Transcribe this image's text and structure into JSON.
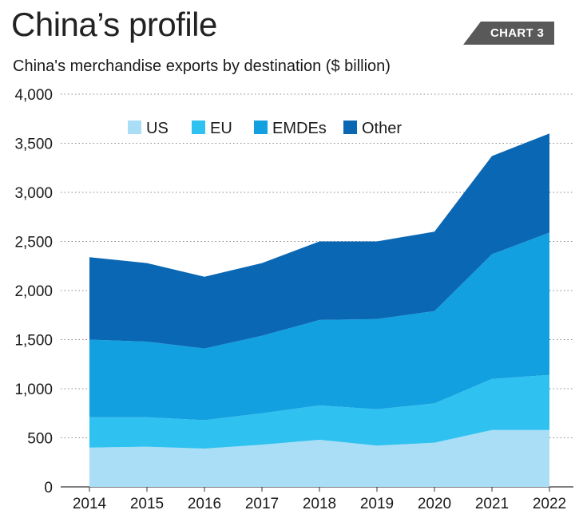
{
  "header": {
    "title": "China’s profile",
    "badge": "CHART 3"
  },
  "chart_data": {
    "type": "area",
    "stacked": true,
    "title": "China's merchandise exports by destination ($ billion)",
    "xlabel": "",
    "ylabel": "",
    "x": [
      "2014",
      "2015",
      "2016",
      "2017",
      "2018",
      "2019",
      "2020",
      "2021",
      "2022"
    ],
    "ylim": [
      0,
      4000
    ],
    "yticks": [
      "0",
      "500",
      "1,000",
      "1,500",
      "2,000",
      "2,500",
      "3,000",
      "3,500",
      "4,000"
    ],
    "ytick_values": [
      0,
      500,
      1000,
      1500,
      2000,
      2500,
      3000,
      3500,
      4000
    ],
    "grid": "horizontal dotted",
    "legend_position": "top-center",
    "series": [
      {
        "name": "US",
        "color": "#a9def6",
        "values": [
          400,
          410,
          390,
          430,
          480,
          420,
          450,
          580,
          580
        ]
      },
      {
        "name": "EU",
        "color": "#2fc1ef",
        "values": [
          310,
          300,
          290,
          320,
          350,
          370,
          400,
          520,
          560
        ]
      },
      {
        "name": "EMDEs",
        "color": "#12a0e0",
        "values": [
          790,
          770,
          730,
          790,
          870,
          920,
          940,
          1270,
          1450
        ]
      },
      {
        "name": "Other",
        "color": "#0a67b3",
        "values": [
          840,
          800,
          730,
          740,
          800,
          790,
          810,
          1000,
          1010
        ]
      }
    ]
  }
}
